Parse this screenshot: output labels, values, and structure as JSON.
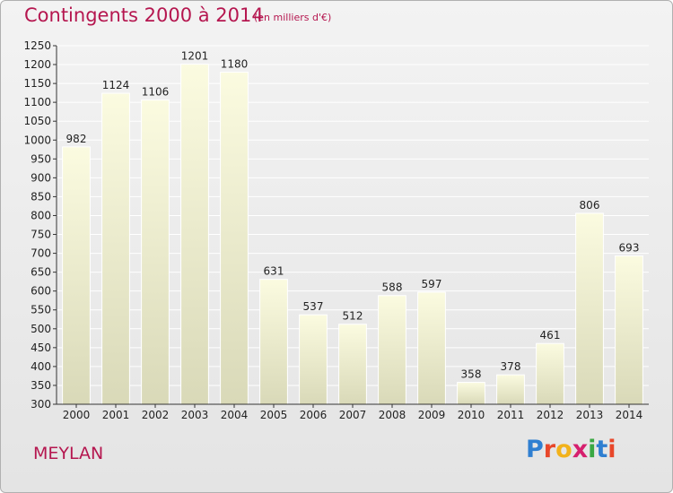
{
  "header": {
    "title": "Contingents 2000 à 2014",
    "unit_note": "(en milliers d'€)"
  },
  "footer": {
    "commune": "MEYLAN",
    "logo_text": "Proxiti",
    "logo_colors": [
      "#2f7fd1",
      "#e8472a",
      "#f2b21b",
      "#d61f6e",
      "#3aa843",
      "#2f7fd1",
      "#e8472a"
    ]
  },
  "colors": {
    "accent": "#b5164f",
    "bar_top": "#fbfbe0",
    "bar_bottom": "#d9d9b8"
  },
  "chart_data": {
    "type": "bar",
    "title": "Contingents 2000 à 2014",
    "subtitle": "(en milliers d'€)",
    "categories": [
      "2000",
      "2001",
      "2002",
      "2003",
      "2004",
      "2005",
      "2006",
      "2007",
      "2008",
      "2009",
      "2010",
      "2011",
      "2012",
      "2013",
      "2014"
    ],
    "values": [
      982,
      1124,
      1106,
      1201,
      1180,
      631,
      537,
      512,
      588,
      597,
      358,
      378,
      461,
      806,
      693
    ],
    "ylim": [
      300,
      1250
    ],
    "yticks": [
      300,
      350,
      400,
      450,
      500,
      550,
      600,
      650,
      700,
      750,
      800,
      850,
      900,
      950,
      1000,
      1050,
      1100,
      1150,
      1200,
      1250
    ],
    "grid": true
  }
}
